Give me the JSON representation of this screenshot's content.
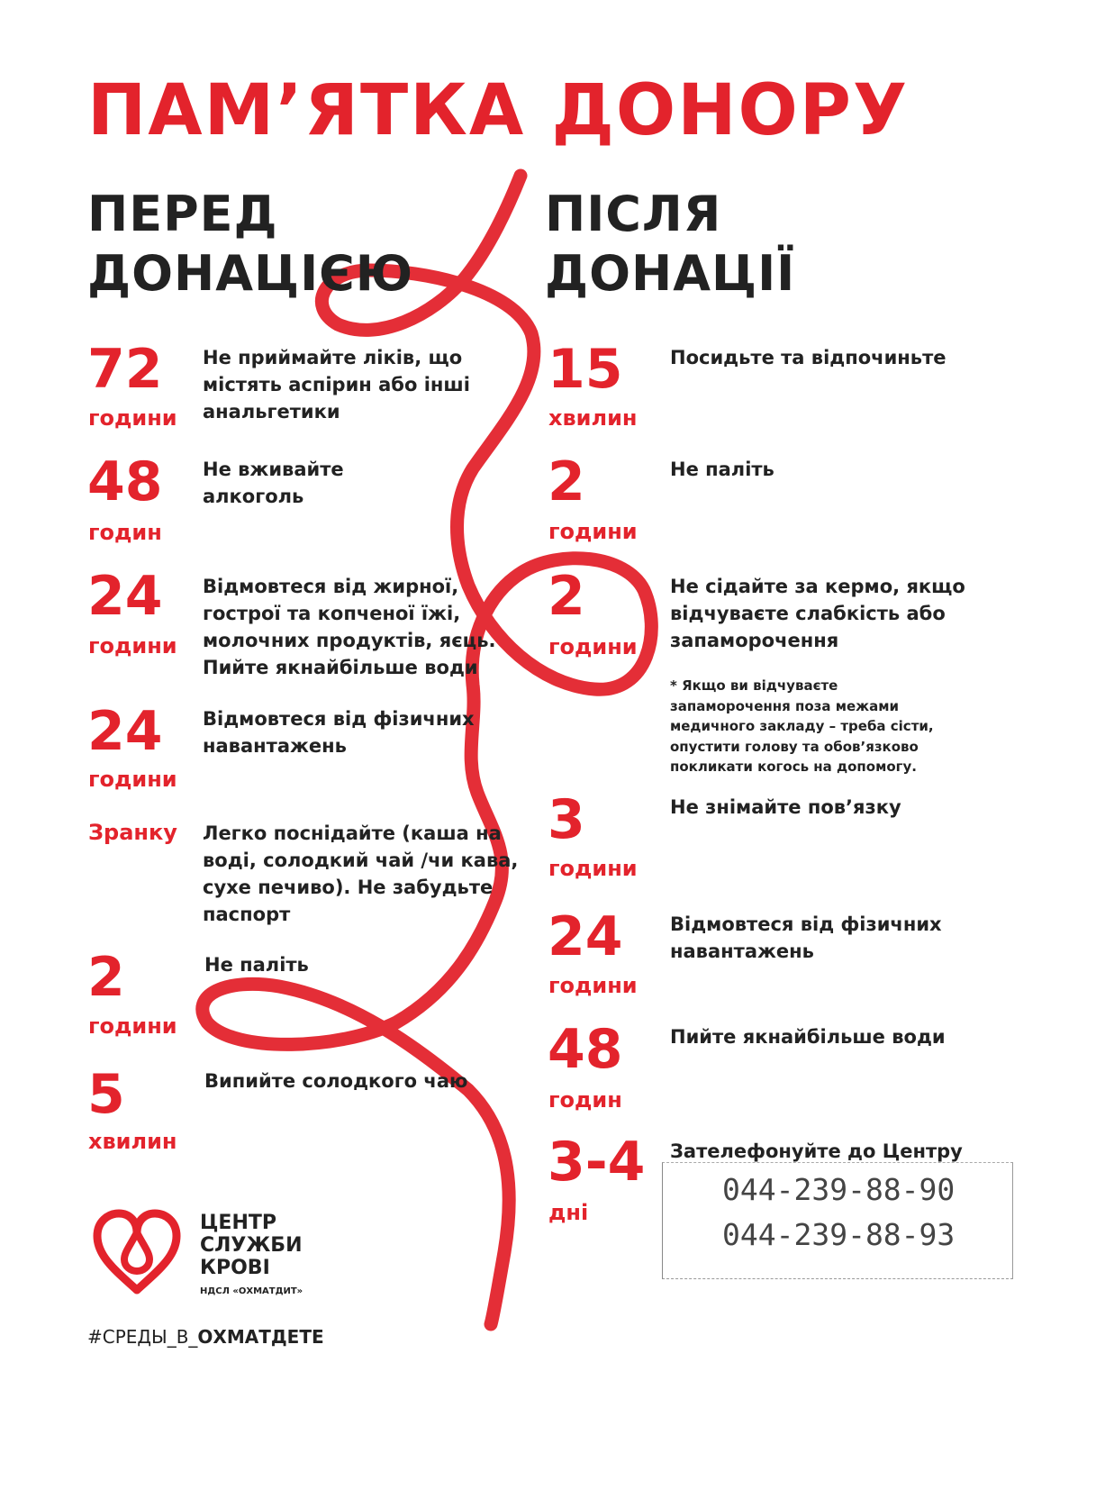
{
  "title": "ПАМ’ЯТКА ДОНОРУ",
  "before": {
    "heading": "ПЕРЕД\nДОНАЦІЄЮ",
    "items": [
      {
        "num": "72",
        "unit": "години",
        "text": "Не приймайте ліків, що\nмістять аспірин або інші\nанальгетики"
      },
      {
        "num": "48",
        "unit": "годин",
        "text": "Не вживайте\nалкоголь"
      },
      {
        "num": "24",
        "unit": "години",
        "text": "Відмовтеся від жирної,\nгострої та  копченої їжі,\nмолочних продуктів, яєць.\nПийте якнайбільше води"
      },
      {
        "num": "24",
        "unit": "години",
        "text": "Відмовтеся від фізичних\nнавантажень"
      },
      {
        "num": "",
        "unit": "Зранку",
        "text": "Легко поснідайте (каша на\nводі, солодкий чай /чи кава,\nсухе печиво). Не забудьте\nпаспорт"
      },
      {
        "num": "2",
        "unit": "години",
        "text": "Не паліть"
      },
      {
        "num": "5",
        "unit": "хвилин",
        "text": "Випийте солодкого чаю"
      }
    ]
  },
  "after": {
    "heading": "ПІСЛЯ\nДОНАЦІЇ",
    "items": [
      {
        "num": "15",
        "unit": "хвилин",
        "text": "Посидьте та відпочиньте"
      },
      {
        "num": "2",
        "unit": "години",
        "text": "Не паліть"
      },
      {
        "num": "2",
        "unit": "години",
        "text": "Не сідайте за кермо, якщо\nвідчуваєте слабкість або\nзапаморочення"
      },
      {
        "num": "3",
        "unit": "години",
        "text": "Не знімайте пов’язку"
      },
      {
        "num": "24",
        "unit": "години",
        "text": "Відмовтеся від фізичних\nнавантажень"
      },
      {
        "num": "48",
        "unit": "годин",
        "text": "Пийте якнайбільше води"
      },
      {
        "num": "3-4",
        "unit": "дні",
        "text": "Зателефонуйте до Центру"
      }
    ],
    "note": "* Якщо ви відчуваєте\nзапаморочення поза межами\nмедичного закладу – треба сісти,\nопустити голову та обов’язково\nпокликати когось на допомогу."
  },
  "phones": [
    "044-239-88-90",
    "044-239-88-93"
  ],
  "logo": {
    "name": "ЦЕНТР\nСЛУЖБИ\nКРОВІ",
    "sub": "НДСЛ «ОХМАТДИТ»",
    "icon": "heart-drop-icon"
  },
  "hashtag": {
    "plain": "#СРЕДЫ_В_",
    "bold": "ОХМАТДЕТЕ"
  },
  "colors": {
    "accent": "#e3232c",
    "text": "#222222"
  }
}
